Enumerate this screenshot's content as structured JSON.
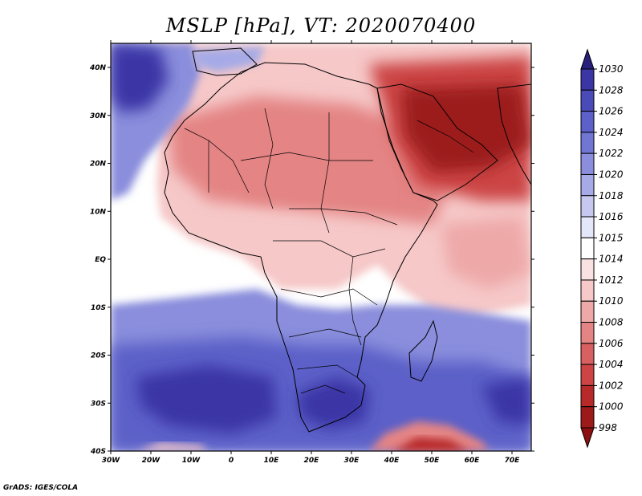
{
  "title": "MSLP [hPa], VT: 2020070400",
  "credit": "GrADS: IGES/COLA",
  "lat_labels": [
    "40N",
    "30N",
    "20N",
    "10N",
    "EQ",
    "10S",
    "20S",
    "30S",
    "40S"
  ],
  "lon_labels": [
    "30W",
    "20W",
    "10W",
    "0",
    "10E",
    "20E",
    "30E",
    "40E",
    "50E",
    "60E",
    "70E"
  ],
  "colorbar": {
    "levels": [
      "1030",
      "1028",
      "1026",
      "1024",
      "1022",
      "1020",
      "1018",
      "1016",
      "1015",
      "1014",
      "1012",
      "1010",
      "1008",
      "1006",
      "1004",
      "1002",
      "1000",
      "998"
    ],
    "colors": [
      "#28207a",
      "#3a36a6",
      "#4a4ab8",
      "#5c60c8",
      "#7176d2",
      "#8a8edc",
      "#a6aae6",
      "#c6c8f0",
      "#e4e6fa",
      "#ffffff",
      "#fbe2e2",
      "#f6c8c8",
      "#eea8a8",
      "#e48484",
      "#d86060",
      "#cc4444",
      "#b82a2a",
      "#9c1a1a",
      "#8c1010"
    ]
  },
  "colors": {
    "high_deep": "#28207a",
    "high_mid": "#5c60c8",
    "high_light": "#a6aae6",
    "neutral": "#ffffff",
    "low_light": "#f6c8c8",
    "low_mid": "#e48484",
    "low_deep": "#9c1a1a"
  }
}
